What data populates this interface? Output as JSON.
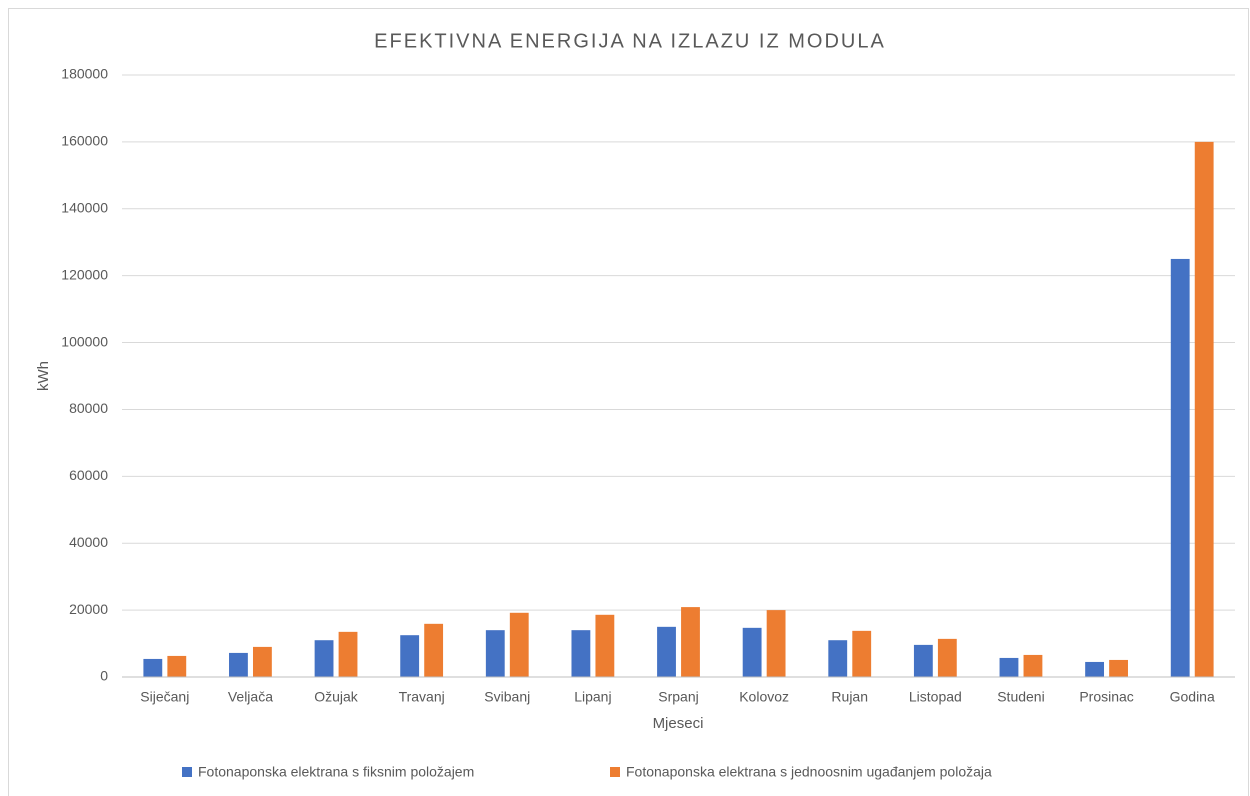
{
  "chart_data": {
    "type": "bar",
    "title": "EFEKTIVNA ENERGIJA NA IZLAZU IZ MODULA",
    "x_label": "Mjeseci",
    "y_label": "kWh",
    "categories": [
      "Siječanj",
      "Veljača",
      "Ožujak",
      "Travanj",
      "Svibanj",
      "Lipanj",
      "Srpanj",
      "Kolovoz",
      "Rujan",
      "Listopad",
      "Studeni",
      "Prosinac",
      "Godina"
    ],
    "series": [
      {
        "name": "Fotonaponska elektrana s fiksnim položajem",
        "color": "#4472c4",
        "values": [
          5400,
          7200,
          11000,
          12500,
          14000,
          14000,
          15000,
          14700,
          11000,
          9600,
          5700,
          4500,
          125000
        ]
      },
      {
        "name": "Fotonaponska elektrana s jednoosnim ugađanjem položaja",
        "color": "#ed7d31",
        "values": [
          6300,
          9000,
          13500,
          15900,
          19200,
          18600,
          20900,
          20000,
          13800,
          11400,
          6600,
          5100,
          160000
        ]
      }
    ],
    "ylim": [
      0,
      180000
    ],
    "yticks": [
      0,
      20000,
      40000,
      60000,
      80000,
      100000,
      120000,
      140000,
      160000,
      180000
    ],
    "grid": true,
    "legend": "bottom"
  }
}
